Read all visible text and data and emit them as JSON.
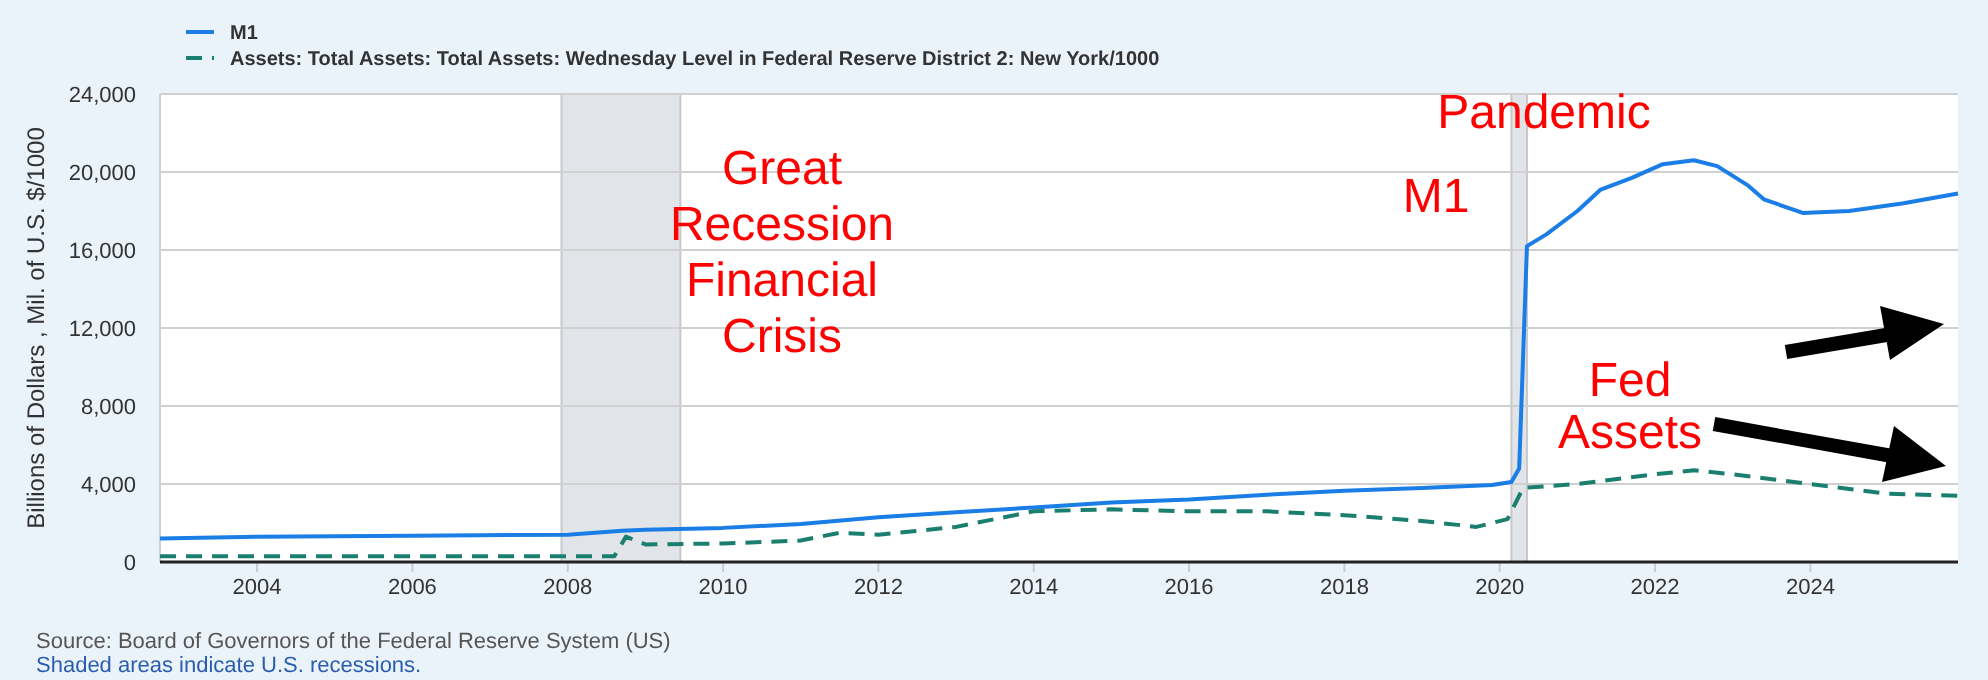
{
  "chart_data": {
    "type": "line",
    "ylabel": "Billions of Dollars , Mil. of U.S. $/1000",
    "xlim": [
      2002.75,
      2025.9
    ],
    "ylim": [
      0,
      24000
    ],
    "xticks": [
      2004,
      2006,
      2008,
      2010,
      2012,
      2014,
      2016,
      2018,
      2020,
      2022,
      2024
    ],
    "yticks": [
      {
        "value": 0,
        "label": "0"
      },
      {
        "value": 4000,
        "label": "4,000"
      },
      {
        "value": 8000,
        "label": "8,000"
      },
      {
        "value": 12000,
        "label": "12,000"
      },
      {
        "value": 16000,
        "label": "16,000"
      },
      {
        "value": 20000,
        "label": "20,000"
      },
      {
        "value": 24000,
        "label": "24,000"
      }
    ],
    "grid": "y",
    "legend": "top left",
    "bands": [
      {
        "axis": "x",
        "from": 2007.92,
        "to": 2009.45,
        "color": "#e1e5ea"
      },
      {
        "axis": "x",
        "from": 2020.15,
        "to": 2020.35,
        "color": "#e1e5ea"
      }
    ],
    "series": [
      {
        "name": "M1",
        "color": "#1a7ee6",
        "line_style": "solid",
        "x": [
          2002.75,
          2004,
          2006,
          2008,
          2008.7,
          2009,
          2010,
          2011,
          2012,
          2013,
          2014,
          2015,
          2016,
          2017,
          2018,
          2019,
          2019.9,
          2020.15,
          2020.25,
          2020.35,
          2020.6,
          2021,
          2021.3,
          2021.7,
          2022.1,
          2022.5,
          2022.8,
          2023.2,
          2023.4,
          2023.9,
          2024.5,
          2025.2,
          2025.9
        ],
        "values": [
          1200,
          1300,
          1350,
          1400,
          1600,
          1650,
          1750,
          1950,
          2300,
          2550,
          2800,
          3050,
          3200,
          3450,
          3650,
          3800,
          3950,
          4100,
          4800,
          16200,
          16800,
          18000,
          19100,
          19700,
          20400,
          20600,
          20300,
          19300,
          18600,
          17900,
          18000,
          18400,
          18900
        ]
      },
      {
        "name": "Assets: Total Assets: Total Assets: Wednesday Level in Federal Reserve District 2: New York/1000",
        "color": "#1b7f6f",
        "line_style": "dashed",
        "x": [
          2002.75,
          2005,
          2008.6,
          2008.75,
          2009,
          2010,
          2011,
          2011.5,
          2012,
          2013,
          2014,
          2015,
          2016,
          2017,
          2018,
          2019,
          2019.7,
          2020.1,
          2020.3,
          2021,
          2022,
          2022.5,
          2023,
          2024,
          2025,
          2025.9
        ],
        "values": [
          300,
          300,
          300,
          1300,
          900,
          950,
          1100,
          1500,
          1400,
          1800,
          2600,
          2700,
          2600,
          2600,
          2400,
          2100,
          1800,
          2200,
          3800,
          4000,
          4500,
          4700,
          4500,
          4000,
          3500,
          3400
        ]
      }
    ],
    "annotations": [
      "Great Recession Financial Crisis",
      "Pandemic",
      "M1",
      "Fed Assets",
      "Source: Board of Governors of the Federal Reserve System (US)",
      "Shaded areas indicate U.S. recessions."
    ]
  }
}
